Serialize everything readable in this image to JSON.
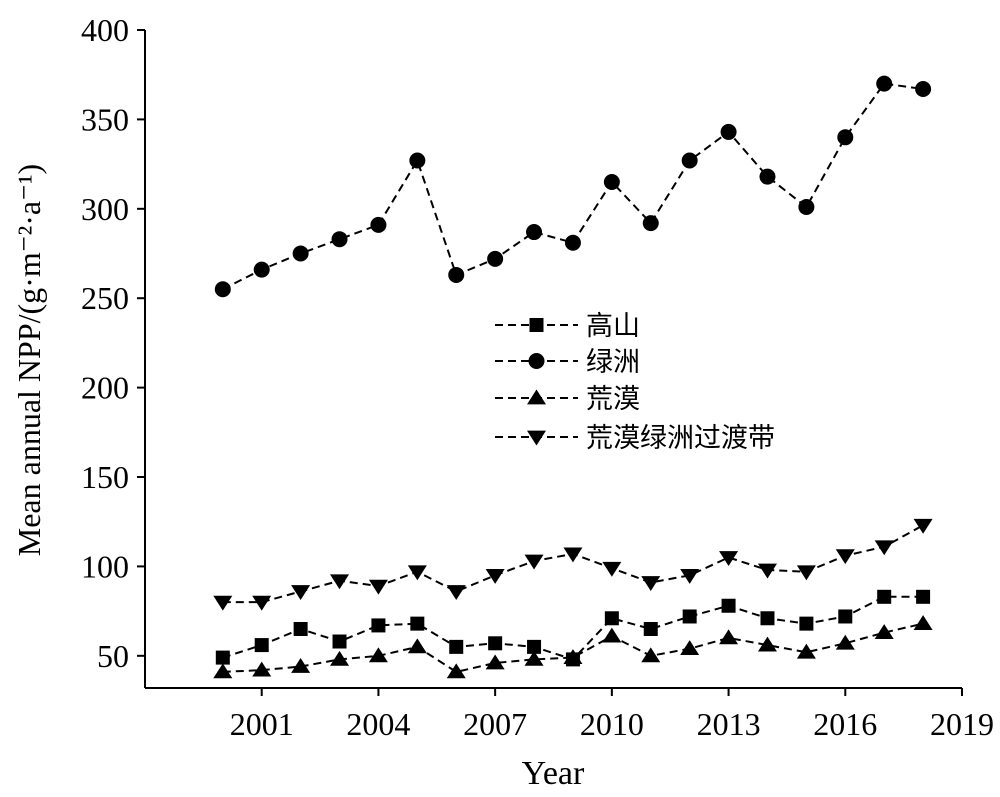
{
  "chart_data": {
    "type": "line",
    "title": "",
    "xlabel": "Year",
    "ylabel": "Mean annual NPP/(g·m⁻²·a⁻¹)",
    "xlim": [
      1998,
      2019
    ],
    "ylim": [
      32,
      400
    ],
    "xticks": [
      2001,
      2004,
      2007,
      2010,
      2013,
      2016,
      2019
    ],
    "yticks": [
      50,
      100,
      150,
      200,
      250,
      300,
      350,
      400
    ],
    "grid": false,
    "legend_position": "center",
    "x": [
      2000,
      2001,
      2002,
      2003,
      2004,
      2005,
      2006,
      2007,
      2008,
      2009,
      2010,
      2011,
      2012,
      2013,
      2014,
      2015,
      2016,
      2017,
      2018
    ],
    "series": [
      {
        "name": "高山",
        "marker": "square",
        "values": [
          49,
          56,
          65,
          58,
          67,
          68,
          55,
          57,
          55,
          48,
          71,
          65,
          72,
          78,
          71,
          68,
          72,
          83,
          83
        ]
      },
      {
        "name": "绿洲",
        "marker": "circle",
        "values": [
          255,
          266,
          275,
          283,
          291,
          327,
          263,
          272,
          287,
          281,
          315,
          292,
          327,
          343,
          318,
          301,
          340,
          370,
          367
        ]
      },
      {
        "name": "荒漠",
        "marker": "triangle-up",
        "values": [
          41,
          42,
          44,
          48,
          50,
          55,
          41,
          46,
          48,
          49,
          61,
          50,
          54,
          60,
          56,
          52,
          57,
          63,
          68
        ]
      },
      {
        "name": "荒漠绿洲过渡带",
        "marker": "triangle-down",
        "values": [
          80,
          80,
          86,
          92,
          89,
          97,
          86,
          95,
          103,
          107,
          99,
          91,
          95,
          105,
          98,
          97,
          106,
          111,
          123
        ]
      }
    ],
    "colors": {
      "line": "#000000",
      "marker": "#000000",
      "background": "#ffffff"
    }
  }
}
